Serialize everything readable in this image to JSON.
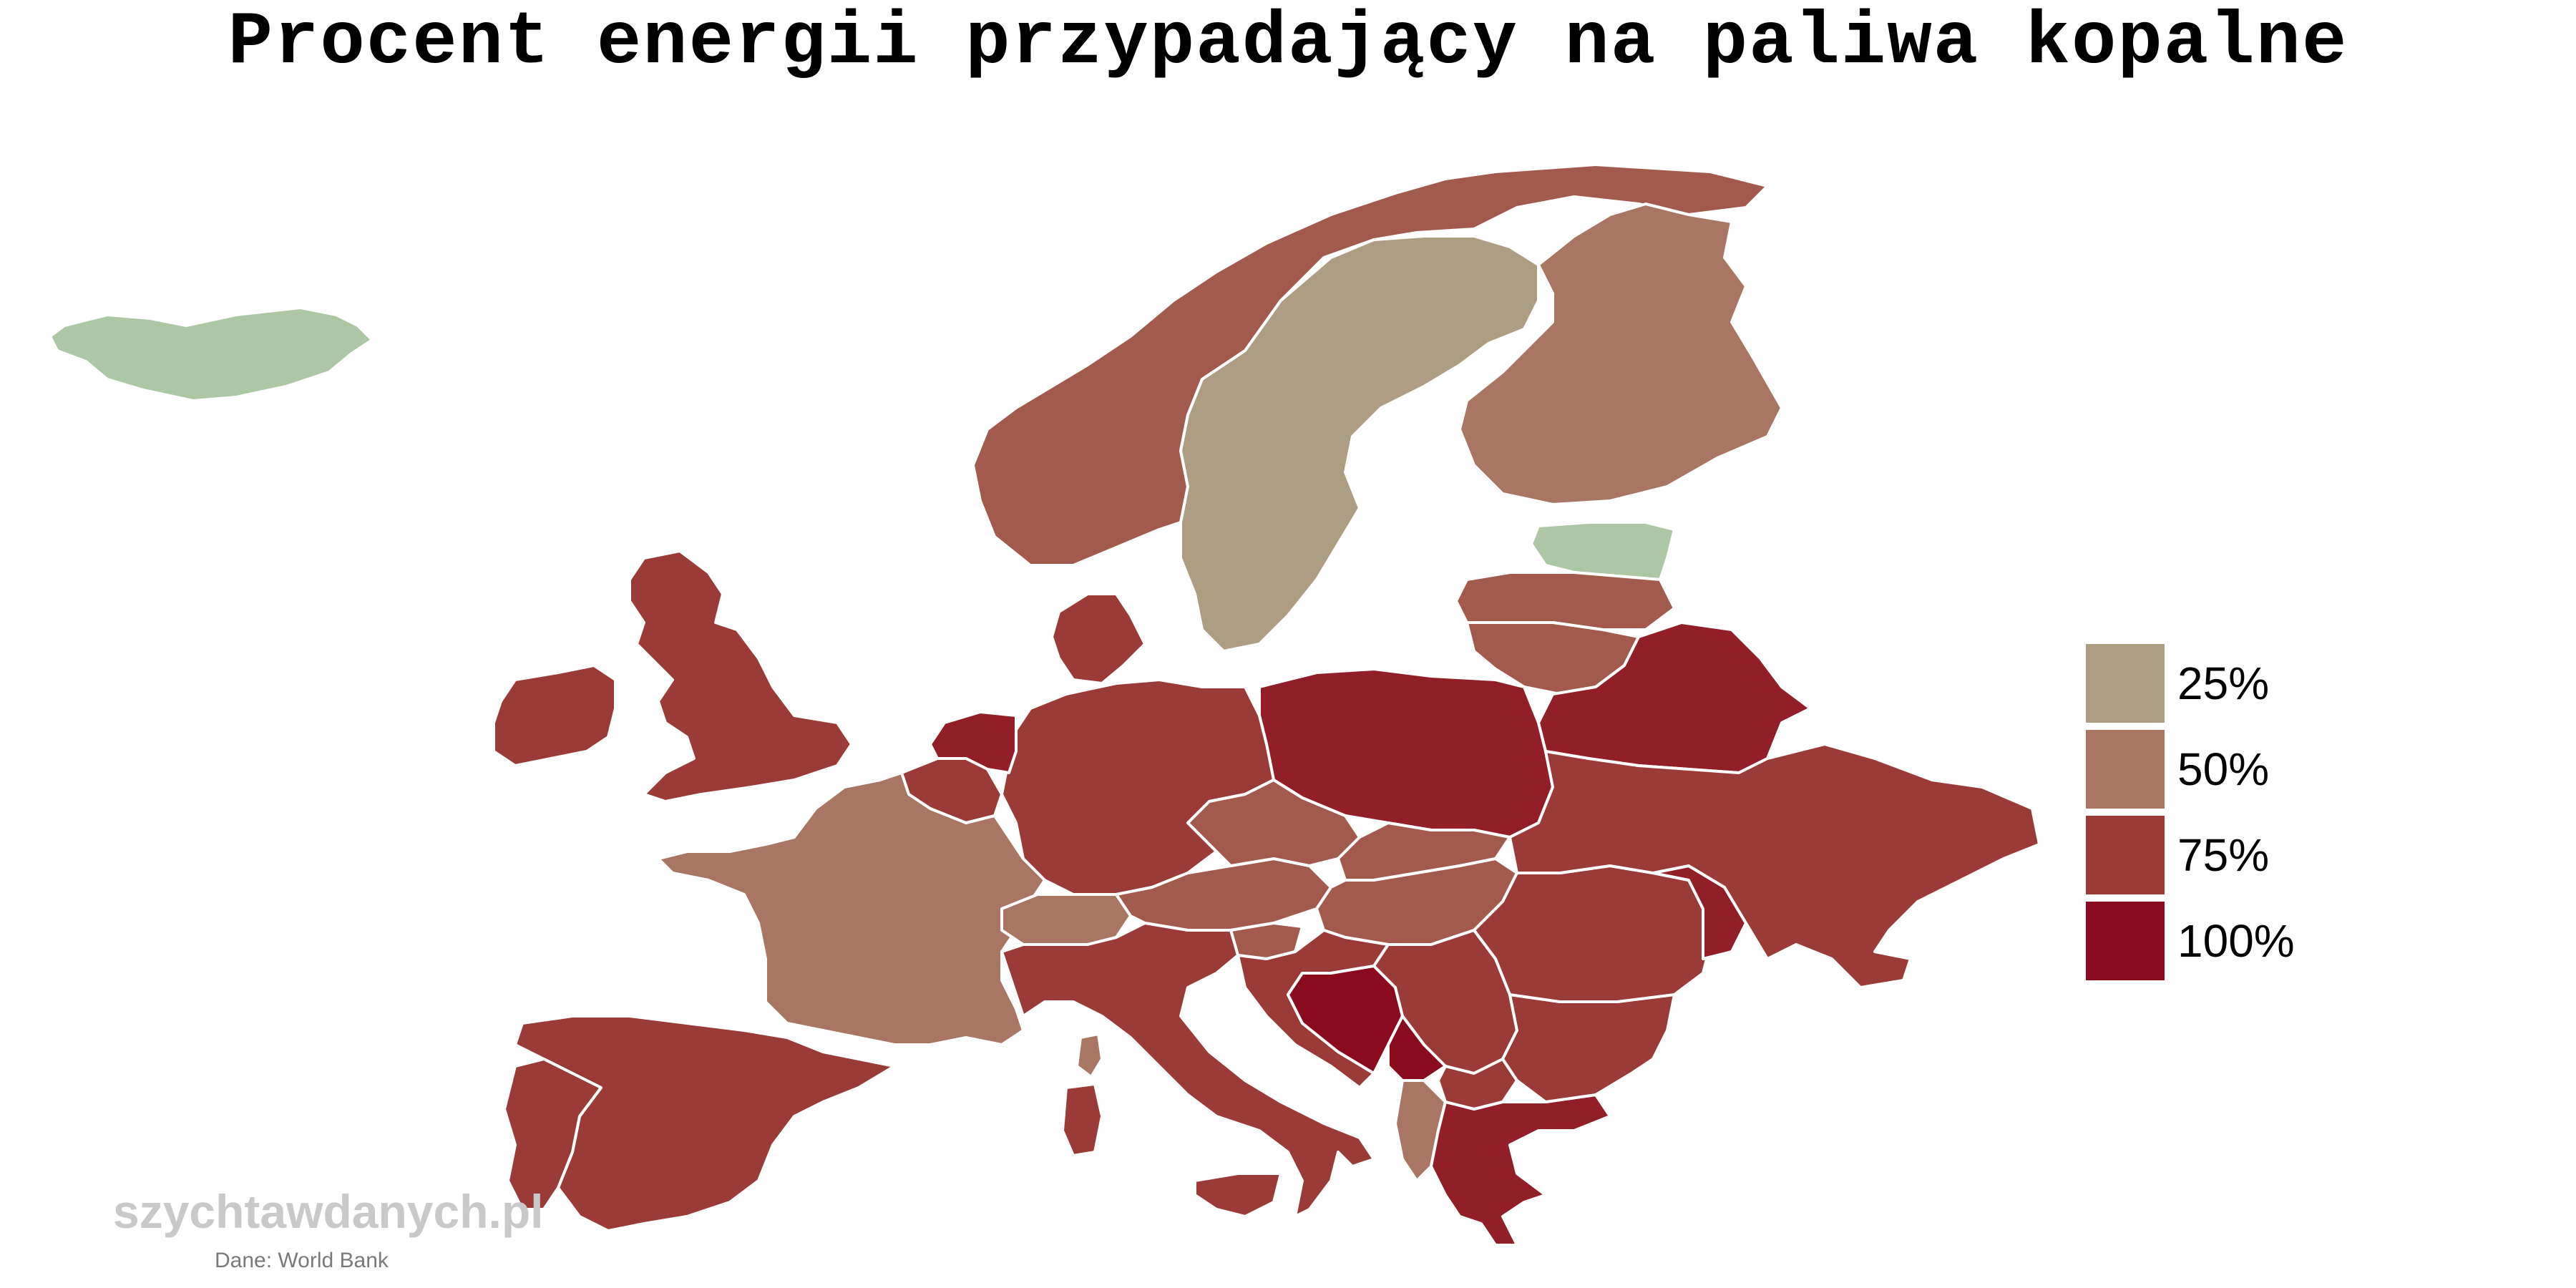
{
  "title": "Procent energii przypadający na paliwa kopalne",
  "legend": [
    {
      "label": "25%",
      "color": "#ad9d83"
    },
    {
      "label": "50%",
      "color": "#a87662"
    },
    {
      "label": "75%",
      "color": "#9a3b38"
    },
    {
      "label": "100%",
      "color": "#8a0a1e"
    }
  ],
  "colors": {
    "low": "#adc7a6",
    "c25": "#ad9d83",
    "c50": "#a87662",
    "c60": "#a25a4c",
    "c75": "#9a3b38",
    "c85": "#921e28",
    "c100": "#8a0a1e"
  },
  "watermark": "szychtawdanych.pl",
  "source": "Dane: World Bank"
}
